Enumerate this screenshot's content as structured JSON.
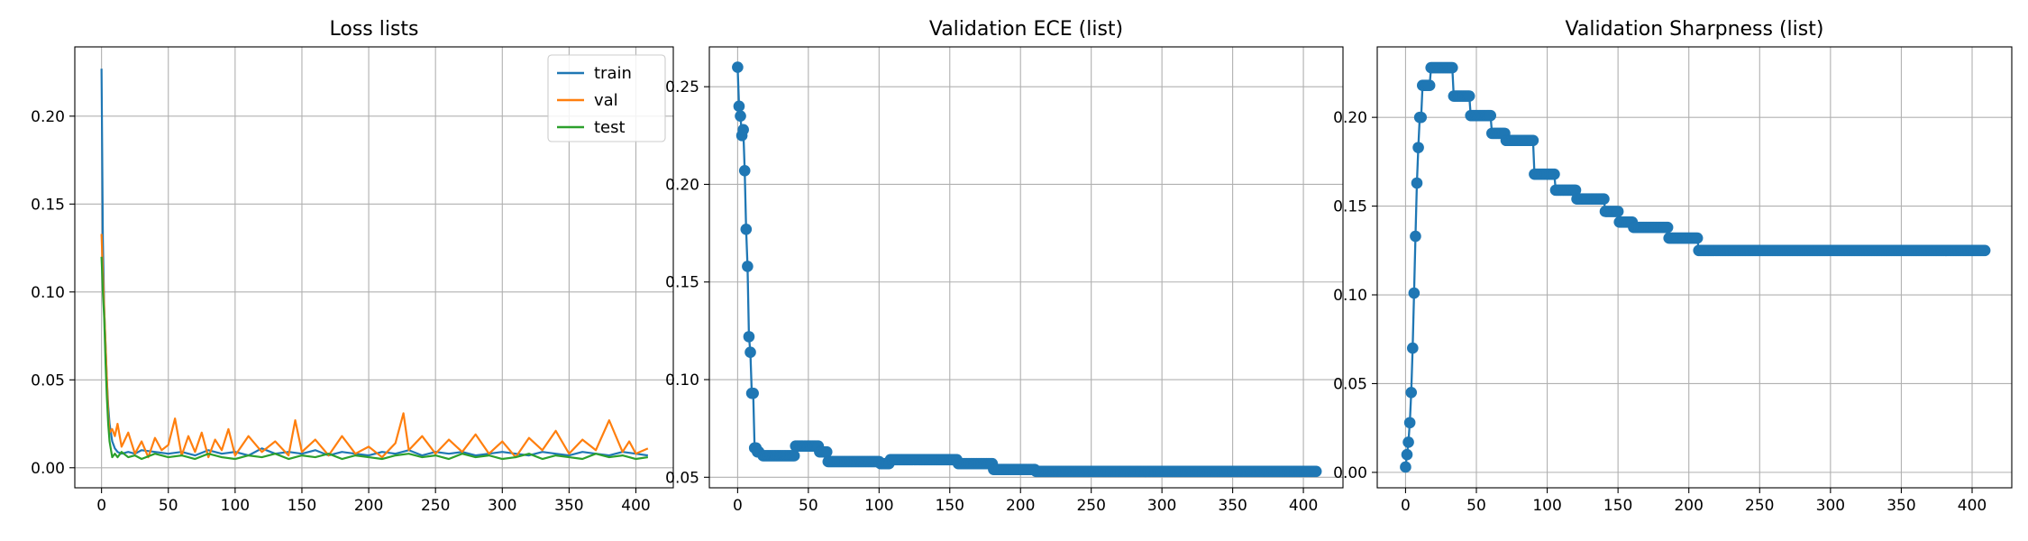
{
  "chart_data": [
    {
      "type": "line",
      "title": "Loss lists",
      "xlabel": "",
      "ylabel": "",
      "xlim": [
        -20,
        428
      ],
      "ylim": [
        -0.0114,
        0.2394
      ],
      "xticks": [
        0,
        50,
        100,
        150,
        200,
        250,
        300,
        350,
        400
      ],
      "yticks": [
        0.0,
        0.05,
        0.1,
        0.15,
        0.2
      ],
      "ytick_labels": [
        "0.00",
        "0.05",
        "0.10",
        "0.15",
        "0.20"
      ],
      "grid": true,
      "legend": "top-right",
      "series": [
        {
          "name": "train",
          "color": "#1f77b4",
          "x": [
            0,
            1,
            2,
            3,
            4,
            5,
            6,
            8,
            10,
            12,
            15,
            20,
            25,
            30,
            40,
            50,
            60,
            70,
            80,
            90,
            100,
            110,
            120,
            130,
            140,
            150,
            160,
            170,
            180,
            190,
            200,
            210,
            220,
            230,
            240,
            250,
            260,
            270,
            280,
            290,
            300,
            310,
            320,
            330,
            340,
            350,
            360,
            370,
            380,
            390,
            400,
            409
          ],
          "values": [
            0.227,
            0.13,
            0.09,
            0.07,
            0.05,
            0.035,
            0.025,
            0.015,
            0.011,
            0.009,
            0.008,
            0.009,
            0.008,
            0.01,
            0.009,
            0.008,
            0.009,
            0.007,
            0.01,
            0.008,
            0.009,
            0.007,
            0.011,
            0.008,
            0.009,
            0.008,
            0.01,
            0.007,
            0.009,
            0.008,
            0.007,
            0.009,
            0.008,
            0.01,
            0.007,
            0.009,
            0.008,
            0.009,
            0.007,
            0.008,
            0.009,
            0.008,
            0.007,
            0.009,
            0.008,
            0.007,
            0.009,
            0.008,
            0.007,
            0.009,
            0.008,
            0.007
          ]
        },
        {
          "name": "val",
          "color": "#ff7f0e",
          "x": [
            0,
            1,
            2,
            3,
            4,
            5,
            6,
            8,
            10,
            12,
            15,
            20,
            25,
            30,
            35,
            40,
            45,
            50,
            55,
            60,
            65,
            70,
            75,
            80,
            85,
            90,
            95,
            100,
            110,
            120,
            130,
            140,
            145,
            150,
            160,
            170,
            180,
            190,
            200,
            210,
            220,
            226,
            230,
            240,
            250,
            260,
            270,
            280,
            290,
            300,
            310,
            320,
            330,
            340,
            350,
            360,
            370,
            380,
            390,
            395,
            400,
            409
          ],
          "values": [
            0.133,
            0.11,
            0.09,
            0.07,
            0.05,
            0.03,
            0.02,
            0.022,
            0.018,
            0.025,
            0.012,
            0.02,
            0.008,
            0.015,
            0.006,
            0.017,
            0.01,
            0.013,
            0.028,
            0.007,
            0.018,
            0.009,
            0.02,
            0.006,
            0.016,
            0.01,
            0.022,
            0.007,
            0.018,
            0.009,
            0.015,
            0.007,
            0.027,
            0.009,
            0.016,
            0.007,
            0.018,
            0.008,
            0.012,
            0.006,
            0.014,
            0.031,
            0.01,
            0.018,
            0.008,
            0.016,
            0.009,
            0.019,
            0.008,
            0.015,
            0.006,
            0.017,
            0.01,
            0.021,
            0.008,
            0.016,
            0.01,
            0.027,
            0.009,
            0.015,
            0.008,
            0.011
          ]
        },
        {
          "name": "test",
          "color": "#2ca02c",
          "x": [
            0,
            1,
            2,
            3,
            4,
            5,
            6,
            8,
            10,
            12,
            15,
            20,
            25,
            30,
            40,
            50,
            60,
            70,
            80,
            90,
            100,
            110,
            120,
            130,
            140,
            150,
            160,
            170,
            180,
            190,
            200,
            210,
            220,
            230,
            240,
            250,
            260,
            270,
            280,
            290,
            300,
            310,
            320,
            330,
            340,
            350,
            360,
            370,
            380,
            390,
            400,
            409
          ],
          "values": [
            0.12,
            0.1,
            0.085,
            0.06,
            0.04,
            0.025,
            0.015,
            0.006,
            0.008,
            0.006,
            0.009,
            0.006,
            0.007,
            0.005,
            0.008,
            0.006,
            0.007,
            0.005,
            0.008,
            0.006,
            0.005,
            0.007,
            0.006,
            0.008,
            0.005,
            0.007,
            0.006,
            0.008,
            0.005,
            0.007,
            0.006,
            0.005,
            0.007,
            0.008,
            0.006,
            0.007,
            0.005,
            0.008,
            0.006,
            0.007,
            0.005,
            0.006,
            0.008,
            0.005,
            0.007,
            0.006,
            0.005,
            0.008,
            0.006,
            0.007,
            0.005,
            0.006
          ]
        }
      ]
    },
    {
      "type": "line",
      "title": "Validation ECE (list)",
      "xlabel": "",
      "ylabel": "",
      "xlim": [
        -20,
        428
      ],
      "ylim": [
        0.0446,
        0.2704
      ],
      "xticks": [
        0,
        50,
        100,
        150,
        200,
        250,
        300,
        350,
        400
      ],
      "yticks": [
        0.05,
        0.1,
        0.15,
        0.2,
        0.25
      ],
      "ytick_labels": [
        "0.05",
        "0.10",
        "0.15",
        "0.20",
        "0.25"
      ],
      "grid": true,
      "markers": true,
      "steps": [
        [
          0,
          0.26
        ],
        [
          1,
          0.24
        ],
        [
          2,
          0.235
        ],
        [
          3,
          0.225
        ],
        [
          4,
          0.228
        ],
        [
          5,
          0.207
        ],
        [
          6,
          0.177
        ],
        [
          7,
          0.158
        ],
        [
          8,
          0.122
        ],
        [
          9,
          0.114
        ],
        [
          10,
          0.093
        ],
        [
          11,
          0.093
        ],
        [
          12,
          0.065
        ],
        [
          13,
          0.065
        ],
        [
          14,
          0.063
        ],
        [
          15,
          0.063
        ],
        [
          18,
          0.061
        ],
        [
          40,
          0.061
        ],
        [
          41,
          0.066
        ],
        [
          57,
          0.066
        ],
        [
          58,
          0.063
        ],
        [
          63,
          0.063
        ],
        [
          64,
          0.058
        ],
        [
          100,
          0.058
        ],
        [
          101,
          0.057
        ],
        [
          107,
          0.057
        ],
        [
          108,
          0.059
        ],
        [
          155,
          0.059
        ],
        [
          156,
          0.057
        ],
        [
          180,
          0.057
        ],
        [
          181,
          0.054
        ],
        [
          210,
          0.054
        ],
        [
          211,
          0.053
        ],
        [
          409,
          0.053
        ]
      ],
      "series": [
        {
          "name": "",
          "color": "#1f77b4"
        }
      ]
    },
    {
      "type": "line",
      "title": "Validation Sharpness (list)",
      "xlabel": "",
      "ylabel": "",
      "xlim": [
        -20,
        428
      ],
      "ylim": [
        -0.0087,
        0.2397
      ],
      "xticks": [
        0,
        50,
        100,
        150,
        200,
        250,
        300,
        350,
        400
      ],
      "yticks": [
        0.0,
        0.05,
        0.1,
        0.15,
        0.2
      ],
      "ytick_labels": [
        "0.00",
        "0.05",
        "0.10",
        "0.15",
        "0.20"
      ],
      "grid": true,
      "markers": true,
      "steps": [
        [
          0,
          0.003
        ],
        [
          1,
          0.01
        ],
        [
          2,
          0.017
        ],
        [
          3,
          0.028
        ],
        [
          4,
          0.045
        ],
        [
          5,
          0.07
        ],
        [
          6,
          0.101
        ],
        [
          7,
          0.133
        ],
        [
          8,
          0.163
        ],
        [
          9,
          0.183
        ],
        [
          10,
          0.2
        ],
        [
          11,
          0.2
        ],
        [
          12,
          0.218
        ],
        [
          17,
          0.218
        ],
        [
          18,
          0.228
        ],
        [
          33,
          0.228
        ],
        [
          34,
          0.212
        ],
        [
          45,
          0.212
        ],
        [
          46,
          0.201
        ],
        [
          60,
          0.201
        ],
        [
          61,
          0.191
        ],
        [
          70,
          0.191
        ],
        [
          71,
          0.187
        ],
        [
          90,
          0.187
        ],
        [
          91,
          0.168
        ],
        [
          105,
          0.168
        ],
        [
          106,
          0.159
        ],
        [
          120,
          0.159
        ],
        [
          121,
          0.154
        ],
        [
          140,
          0.154
        ],
        [
          141,
          0.147
        ],
        [
          150,
          0.147
        ],
        [
          151,
          0.141
        ],
        [
          160,
          0.141
        ],
        [
          161,
          0.138
        ],
        [
          185,
          0.138
        ],
        [
          186,
          0.132
        ],
        [
          206,
          0.132
        ],
        [
          207,
          0.125
        ],
        [
          409,
          0.125
        ]
      ],
      "series": [
        {
          "name": "",
          "color": "#1f77b4"
        }
      ]
    }
  ]
}
